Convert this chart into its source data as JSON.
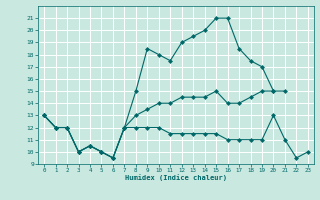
{
  "title": "",
  "xlabel": "Humidex (Indice chaleur)",
  "bg_color": "#c8e8e0",
  "grid_color": "#ffffff",
  "line_color": "#006868",
  "xlim": [
    -0.5,
    23.5
  ],
  "ylim": [
    9,
    22
  ],
  "yticks": [
    9,
    10,
    11,
    12,
    13,
    14,
    15,
    16,
    17,
    18,
    19,
    20,
    21
  ],
  "xticks": [
    0,
    1,
    2,
    3,
    4,
    5,
    6,
    7,
    8,
    9,
    10,
    11,
    12,
    13,
    14,
    15,
    16,
    17,
    18,
    19,
    20,
    21,
    22,
    23
  ],
  "line1_x": [
    0,
    1,
    2,
    3,
    4,
    5,
    6,
    7,
    8,
    9,
    10,
    11,
    12,
    13,
    14,
    15,
    16,
    17,
    18,
    19,
    20,
    21
  ],
  "line1_y": [
    13,
    12,
    12,
    10,
    10.5,
    10,
    9.5,
    12,
    15,
    18.5,
    18,
    17.5,
    19,
    19.5,
    20,
    21,
    21,
    18.5,
    17.5,
    17,
    15,
    15
  ],
  "line2_x": [
    0,
    1,
    2,
    3,
    4,
    5,
    6,
    7,
    8,
    9,
    10,
    11,
    12,
    13,
    14,
    15,
    16,
    17,
    18,
    19,
    20
  ],
  "line2_y": [
    13,
    12,
    12,
    10,
    10.5,
    10,
    9.5,
    12,
    13,
    13.5,
    14,
    14,
    14.5,
    14.5,
    14.5,
    15,
    14,
    14,
    14.5,
    15,
    15
  ],
  "line3_x": [
    0,
    1,
    2,
    3,
    4,
    5,
    6,
    7,
    8,
    9,
    10,
    11,
    12,
    13,
    14,
    15,
    16,
    17,
    18,
    19,
    20,
    21,
    22,
    23
  ],
  "line3_y": [
    13,
    12,
    12,
    10,
    10.5,
    10,
    9.5,
    12,
    12,
    12,
    12,
    11.5,
    11.5,
    11.5,
    11.5,
    11.5,
    11,
    11,
    11,
    11,
    13,
    11,
    9.5,
    10
  ],
  "markersize": 2.5,
  "linewidth": 0.8
}
